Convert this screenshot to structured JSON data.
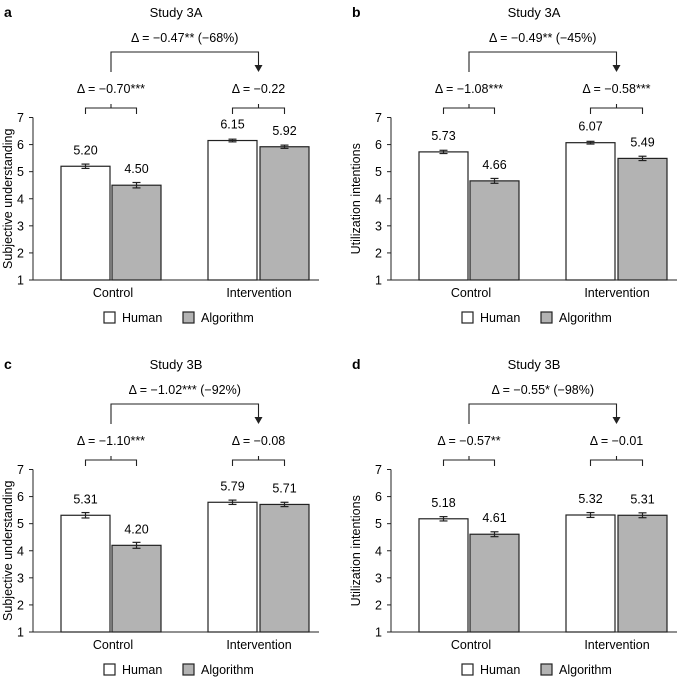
{
  "chart_data": [
    {
      "panel_label": "a",
      "type": "bar",
      "title": "Study 3A",
      "ylabel": "Subjective understanding",
      "ylim": [
        1,
        7
      ],
      "yticks": [
        "1",
        "2",
        "3",
        "4",
        "5",
        "6",
        "7"
      ],
      "categories": [
        "Control",
        "Intervention"
      ],
      "series": [
        {
          "name": "Human",
          "color": "#ffffff",
          "values": [
            5.2,
            6.15
          ],
          "errors": [
            0.08,
            0.05
          ],
          "labels": [
            "5.20",
            "6.15"
          ]
        },
        {
          "name": "Algorithm",
          "color": "#b3b3b3",
          "values": [
            4.5,
            5.92
          ],
          "errors": [
            0.1,
            0.06
          ],
          "labels": [
            "4.50",
            "5.92"
          ]
        }
      ],
      "group_annotations": [
        "Δ = −0.70***",
        "Δ = −0.22"
      ],
      "top_annotation": "Δ = −0.47** (−68%)",
      "legend": [
        "Human",
        "Algorithm"
      ]
    },
    {
      "panel_label": "b",
      "type": "bar",
      "title": "Study 3A",
      "ylabel": "Utilization intentions",
      "ylim": [
        1,
        7
      ],
      "yticks": [
        "1",
        "2",
        "3",
        "4",
        "5",
        "6",
        "7"
      ],
      "categories": [
        "Control",
        "Intervention"
      ],
      "series": [
        {
          "name": "Human",
          "color": "#ffffff",
          "values": [
            5.73,
            6.07
          ],
          "errors": [
            0.06,
            0.05
          ],
          "labels": [
            "5.73",
            "6.07"
          ]
        },
        {
          "name": "Algorithm",
          "color": "#b3b3b3",
          "values": [
            4.66,
            5.49
          ],
          "errors": [
            0.09,
            0.08
          ],
          "labels": [
            "4.66",
            "5.49"
          ]
        }
      ],
      "group_annotations": [
        "Δ = −1.08***",
        "Δ = −0.58***"
      ],
      "top_annotation": "Δ = −0.49** (−45%)",
      "legend": [
        "Human",
        "Algorithm"
      ]
    },
    {
      "panel_label": "c",
      "type": "bar",
      "title": "Study 3B",
      "ylabel": "Subjective understanding",
      "ylim": [
        1,
        7
      ],
      "yticks": [
        "1",
        "2",
        "3",
        "4",
        "5",
        "6",
        "7"
      ],
      "categories": [
        "Control",
        "Intervention"
      ],
      "series": [
        {
          "name": "Human",
          "color": "#ffffff",
          "values": [
            5.31,
            5.79
          ],
          "errors": [
            0.1,
            0.08
          ],
          "labels": [
            "5.31",
            "5.79"
          ]
        },
        {
          "name": "Algorithm",
          "color": "#b3b3b3",
          "values": [
            4.2,
            5.71
          ],
          "errors": [
            0.11,
            0.08
          ],
          "labels": [
            "4.20",
            "5.71"
          ]
        }
      ],
      "group_annotations": [
        "Δ = −1.10***",
        "Δ = −0.08"
      ],
      "top_annotation": "Δ = −1.02*** (−92%)",
      "legend": [
        "Human",
        "Algorithm"
      ]
    },
    {
      "panel_label": "d",
      "type": "bar",
      "title": "Study 3B",
      "ylabel": "Utilization intentions",
      "ylim": [
        1,
        7
      ],
      "yticks": [
        "1",
        "2",
        "3",
        "4",
        "5",
        "6",
        "7"
      ],
      "categories": [
        "Control",
        "Intervention"
      ],
      "series": [
        {
          "name": "Human",
          "color": "#ffffff",
          "values": [
            5.18,
            5.32
          ],
          "errors": [
            0.08,
            0.09
          ],
          "labels": [
            "5.18",
            "5.32"
          ]
        },
        {
          "name": "Algorithm",
          "color": "#b3b3b3",
          "values": [
            4.61,
            5.31
          ],
          "errors": [
            0.09,
            0.09
          ],
          "labels": [
            "4.61",
            "5.31"
          ]
        }
      ],
      "group_annotations": [
        "Δ = −0.57**",
        "Δ = −0.01"
      ],
      "top_annotation": "Δ = −0.55* (−98%)",
      "legend": [
        "Human",
        "Algorithm"
      ]
    }
  ]
}
